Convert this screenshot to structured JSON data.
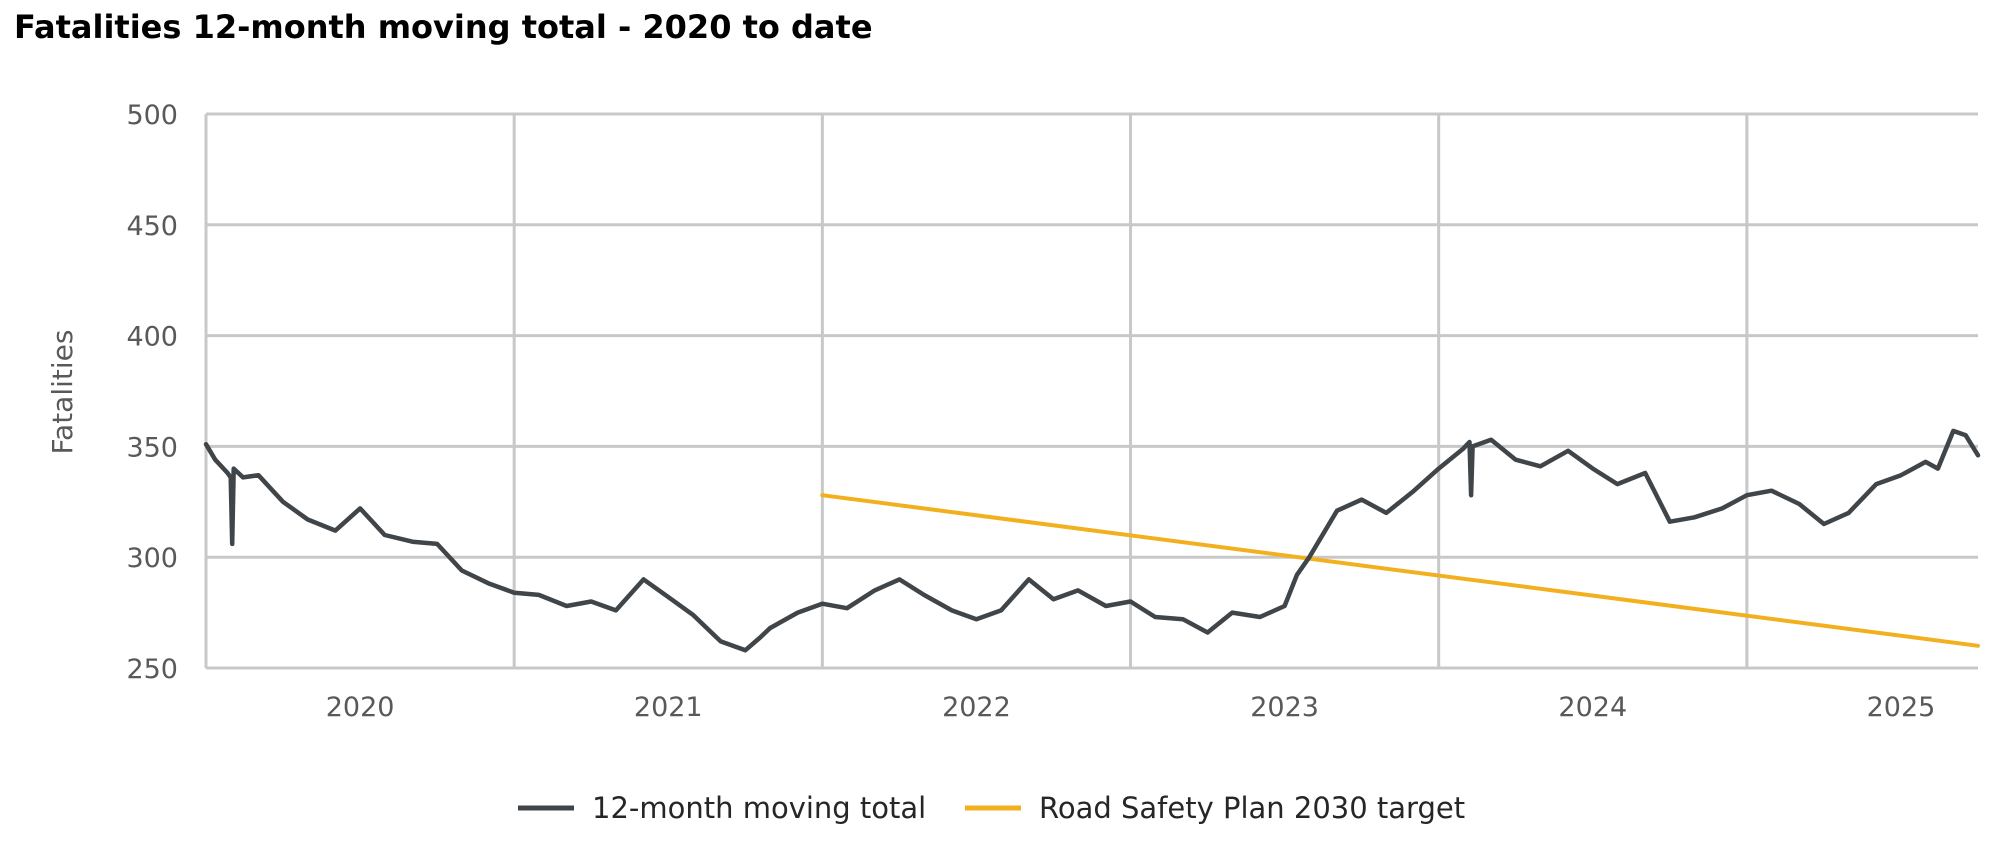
{
  "chart_data": {
    "type": "line",
    "title": "Fatalities 12-month moving total - 2020 to date",
    "xlabel": "",
    "ylabel": "Fatalities",
    "ylim": [
      250,
      500
    ],
    "yticks": [
      250,
      300,
      350,
      400,
      450,
      500
    ],
    "xlim": [
      2019.5,
      2025.25
    ],
    "x_ticks": [
      {
        "label": "2020",
        "value": 2020.0
      },
      {
        "label": "2021",
        "value": 2021.0
      },
      {
        "label": "2022",
        "value": 2022.0
      },
      {
        "label": "2023",
        "value": 2023.0
      },
      {
        "label": "2024",
        "value": 2024.0
      },
      {
        "label": "2025",
        "value": 2025.0
      }
    ],
    "x_gridlines": [
      2020.5,
      2021.5,
      2022.5,
      2023.5,
      2024.5
    ],
    "grid": true,
    "legend_position": "bottom-center",
    "series": [
      {
        "name": "12-month moving total",
        "color": "#404549",
        "x": [
          2019.5,
          2019.53,
          2019.57,
          2019.58,
          2019.585,
          2019.59,
          2019.62,
          2019.67,
          2019.75,
          2019.83,
          2019.92,
          2020.0,
          2020.08,
          2020.17,
          2020.25,
          2020.33,
          2020.42,
          2020.5,
          2020.58,
          2020.67,
          2020.75,
          2020.83,
          2020.92,
          2021.0,
          2021.08,
          2021.17,
          2021.25,
          2021.3,
          2021.33,
          2021.42,
          2021.5,
          2021.58,
          2021.67,
          2021.75,
          2021.83,
          2021.92,
          2022.0,
          2022.08,
          2022.17,
          2022.25,
          2022.33,
          2022.42,
          2022.5,
          2022.58,
          2022.67,
          2022.75,
          2022.83,
          2022.92,
          2023.0,
          2023.04,
          2023.08,
          2023.17,
          2023.25,
          2023.33,
          2023.42,
          2023.5,
          2023.58,
          2023.6,
          2023.605,
          2023.61,
          2023.67,
          2023.75,
          2023.83,
          2023.92,
          2024.0,
          2024.08,
          2024.17,
          2024.25,
          2024.33,
          2024.42,
          2024.5,
          2024.58,
          2024.67,
          2024.75,
          2024.83,
          2024.92,
          2025.0,
          2025.08,
          2025.12,
          2025.17,
          2025.21,
          2025.25
        ],
        "values": [
          351,
          344,
          338,
          336,
          306,
          340,
          336,
          337,
          325,
          317,
          312,
          322,
          310,
          307,
          306,
          294,
          288,
          284,
          283,
          278,
          280,
          276,
          290,
          282,
          274,
          262,
          258,
          264,
          268,
          275,
          279,
          277,
          285,
          290,
          283,
          276,
          272,
          276,
          290,
          281,
          285,
          278,
          280,
          273,
          272,
          266,
          275,
          273,
          278,
          292,
          300,
          321,
          326,
          320,
          330,
          340,
          349,
          352,
          328,
          350,
          353,
          344,
          341,
          348,
          340,
          333,
          338,
          316,
          318,
          322,
          328,
          330,
          324,
          315,
          320,
          333,
          337,
          343,
          340,
          357,
          355,
          346
        ]
      },
      {
        "name": "Road Safety Plan 2030 target",
        "color": "#F2B01E",
        "x": [
          2021.5,
          2025.25
        ],
        "values": [
          328,
          260
        ]
      }
    ]
  }
}
